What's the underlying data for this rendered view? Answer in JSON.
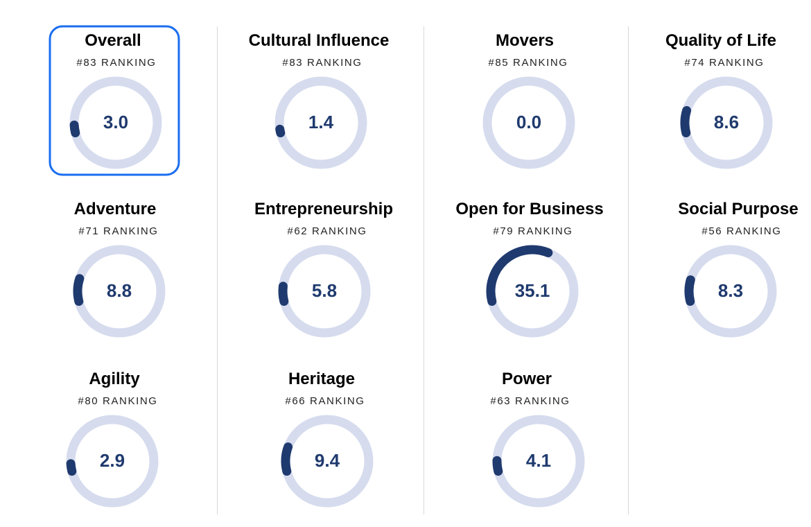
{
  "gauge_range": [
    0,
    100
  ],
  "cards": [
    {
      "title": "Overall",
      "ranking": "#83 RANKING",
      "score": {
        "value": 3,
        "label": "3.0"
      },
      "selected": true
    },
    {
      "title": "Cultural Influence",
      "ranking": "#83 RANKING",
      "score": {
        "value": 1.4,
        "label": "1.4"
      }
    },
    {
      "title": "Movers",
      "ranking": "#85 RANKING",
      "score": {
        "value": 0,
        "label": "0.0"
      }
    },
    {
      "title": "Quality of Life",
      "ranking": "#74 RANKING",
      "score": {
        "value": 8.6,
        "label": "8.6"
      }
    },
    {
      "title": "Adventure",
      "ranking": "#71 RANKING",
      "score": {
        "value": 8.8,
        "label": "8.8"
      }
    },
    {
      "title": "Entrepreneurship",
      "ranking": "#62 RANKING",
      "score": {
        "value": 5.8,
        "label": "5.8"
      }
    },
    {
      "title": "Open for Business",
      "ranking": "#79 RANKING",
      "score": {
        "value": 35.1,
        "label": "35.1"
      }
    },
    {
      "title": "Social Purpose",
      "ranking": "#56 RANKING",
      "score": {
        "value": 8.3,
        "label": "8.3"
      }
    },
    {
      "title": "Agility",
      "ranking": "#80 RANKING",
      "score": {
        "value": 2.9,
        "label": "2.9"
      }
    },
    {
      "title": "Heritage",
      "ranking": "#66 RANKING",
      "score": {
        "value": 9.4,
        "label": "9.4"
      }
    },
    {
      "title": "Power",
      "ranking": "#63 RANKING",
      "score": {
        "value": 4.1,
        "label": "4.1"
      }
    }
  ]
}
